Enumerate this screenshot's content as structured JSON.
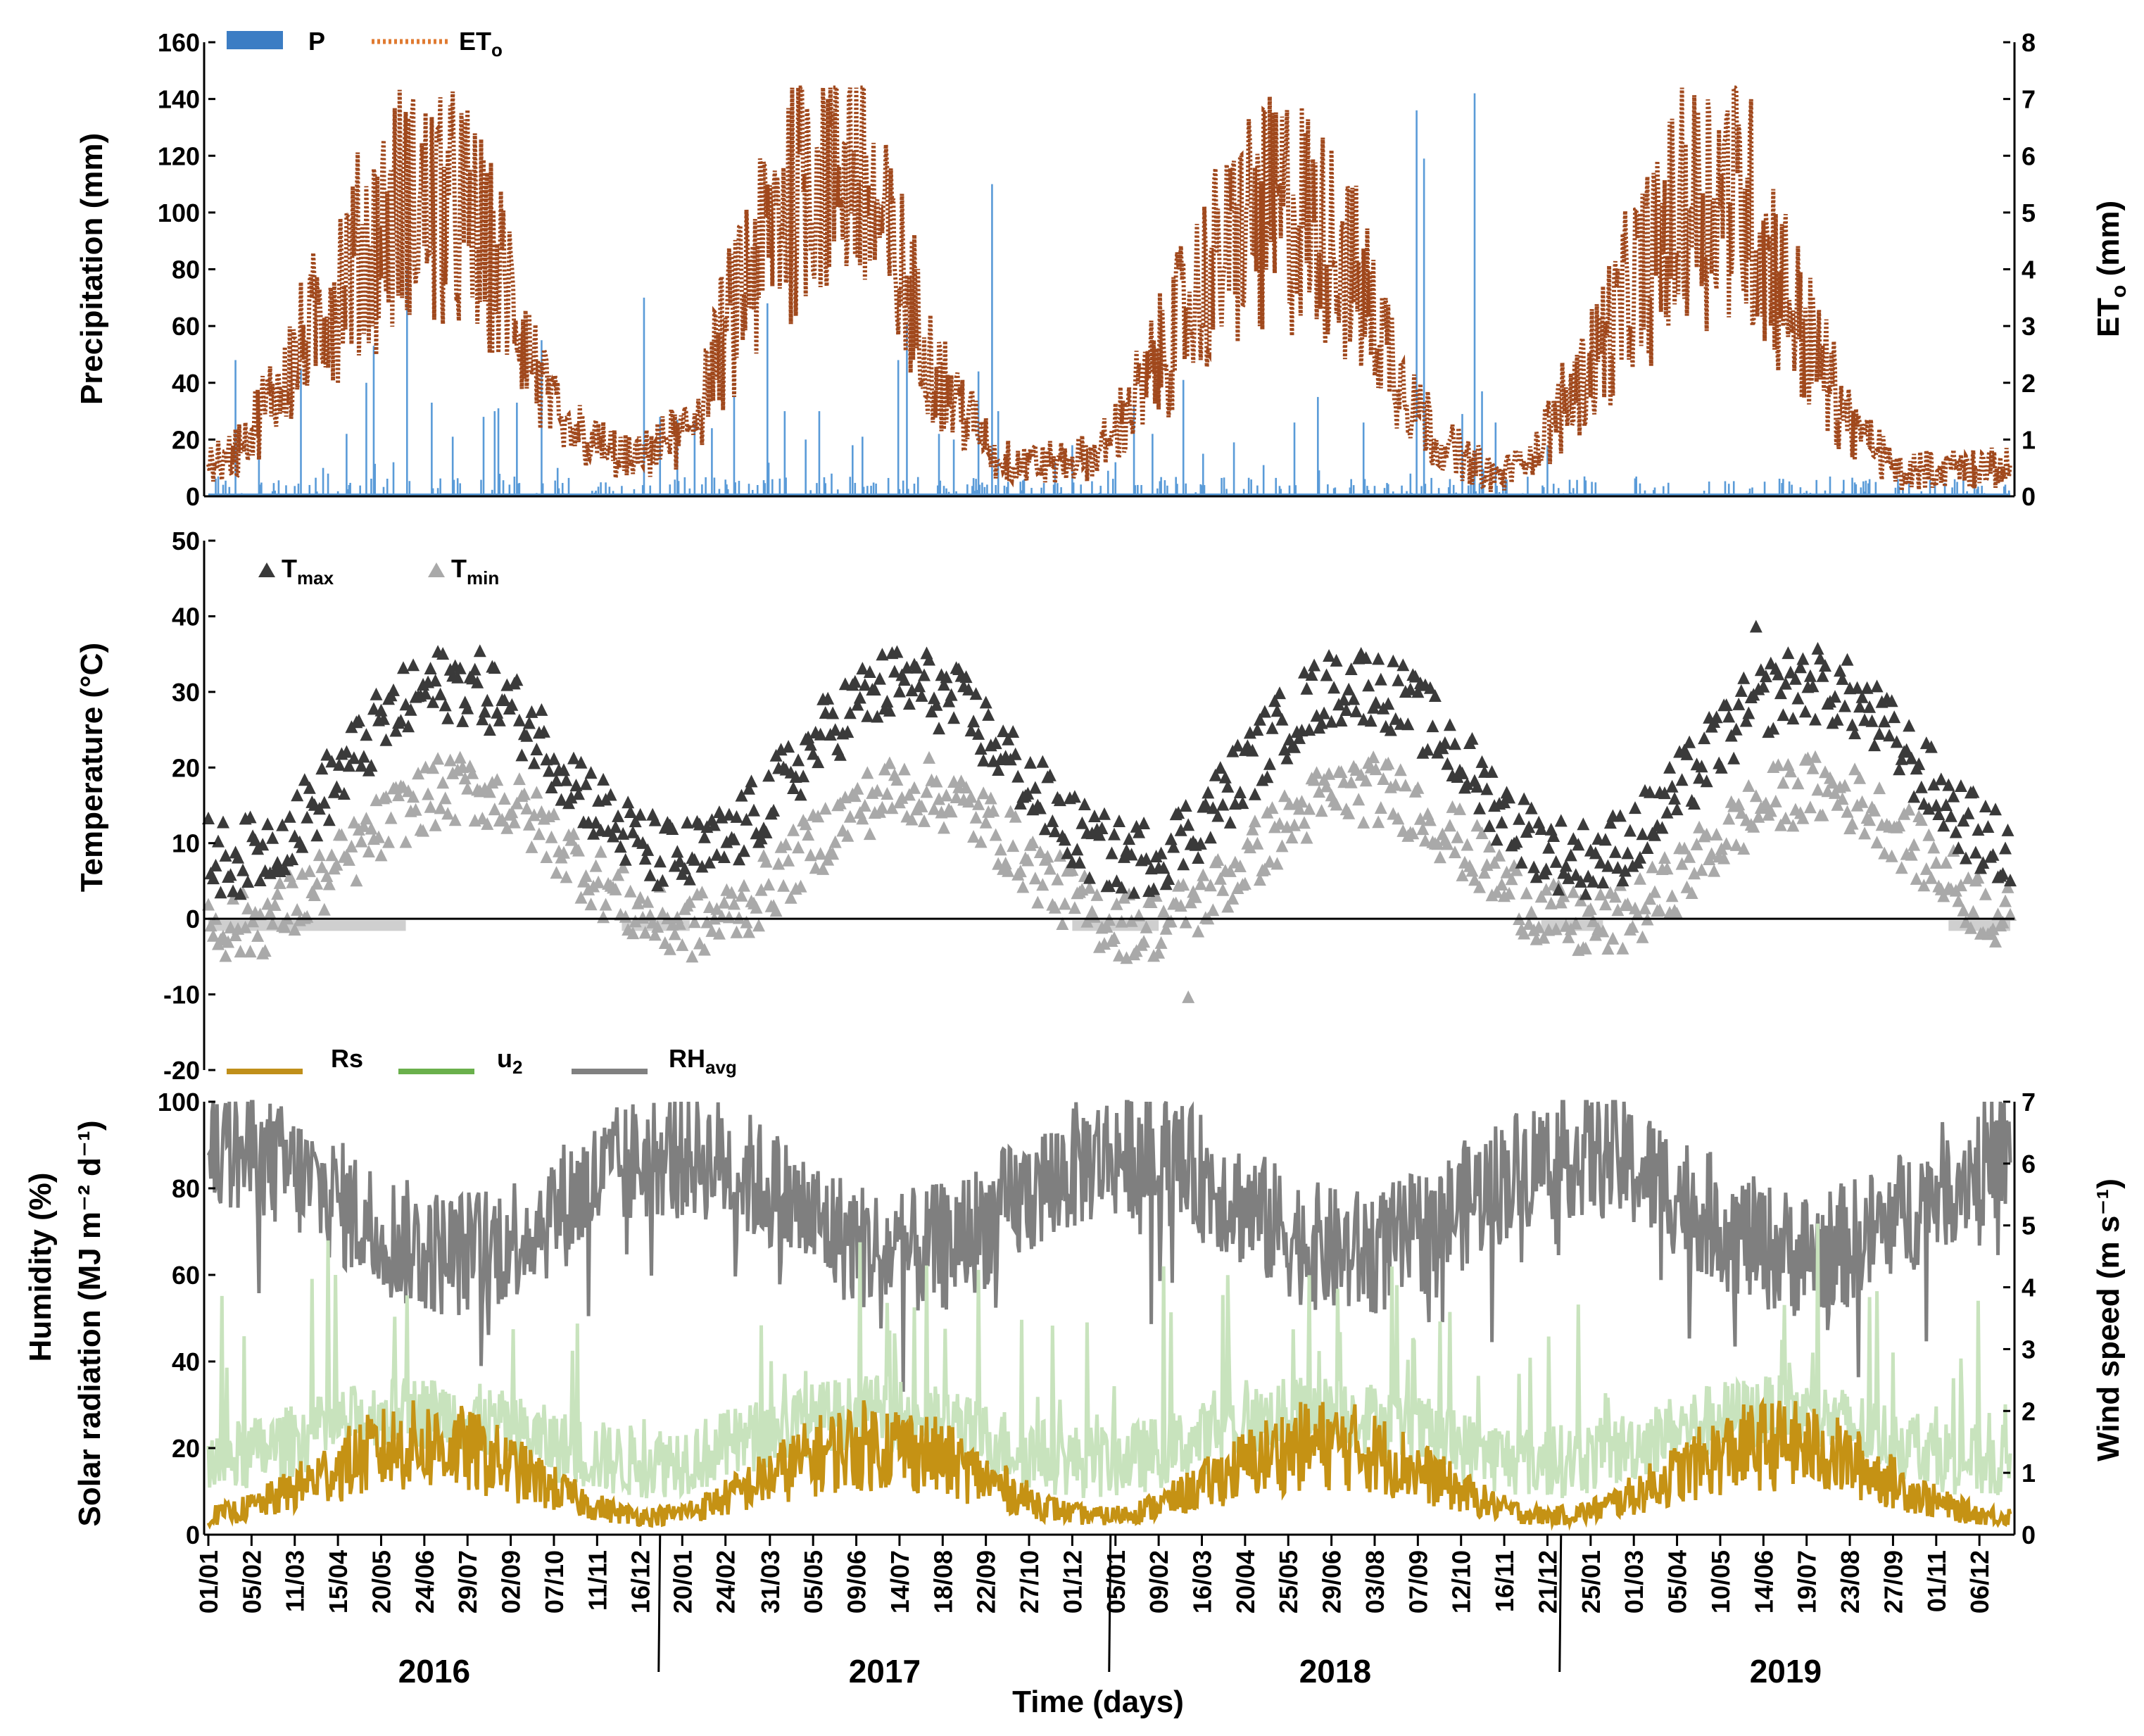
{
  "chart_data": [
    {
      "type": "bar",
      "panel": "top",
      "ylabel": "Precipitation (mm)",
      "y2label": "ETo (mm)",
      "y2label_main": "ET",
      "y2label_sub": "o",
      "y2label_unit": " (mm)",
      "ylim": [
        0,
        160
      ],
      "y_ticks": [
        0,
        20,
        40,
        60,
        80,
        100,
        120,
        140,
        160
      ],
      "y2lim": [
        0,
        8
      ],
      "y2_ticks": [
        0,
        1,
        2,
        3,
        4,
        5,
        6,
        7,
        8
      ],
      "legend": [
        {
          "key": "P",
          "label": "P",
          "sub": "",
          "color": "#3c7dc4",
          "style": "bar"
        },
        {
          "key": "ETo",
          "label": "ET",
          "sub": "o",
          "color": "#e07b32",
          "style": "dotted"
        }
      ],
      "series": [
        {
          "name": "P",
          "style": "bar",
          "color": "#5a9bd8",
          "daily": "generated",
          "peaks": [
            [
              8,
              7
            ],
            [
              22,
              48
            ],
            [
              41,
              33
            ],
            [
              75,
              45
            ],
            [
              93,
              10
            ],
            [
              97,
              8
            ],
            [
              112,
              22
            ],
            [
              128,
              40
            ],
            [
              134,
              53
            ],
            [
              150,
              12
            ],
            [
              161,
              81
            ],
            [
              181,
              33
            ],
            [
              198,
              21
            ],
            [
              223,
              28
            ],
            [
              232,
              30
            ],
            [
              235,
              31
            ],
            [
              250,
              33
            ],
            [
              270,
              55
            ],
            [
              283,
              10
            ],
            [
              353,
              70
            ],
            [
              366,
              28
            ],
            [
              380,
              27
            ],
            [
              394,
              26
            ],
            [
              408,
              24
            ],
            [
              426,
              35
            ],
            [
              453,
              68
            ],
            [
              467,
              30
            ],
            [
              484,
              20
            ],
            [
              495,
              30
            ],
            [
              505,
              8
            ],
            [
              522,
              18
            ],
            [
              530,
              21
            ],
            [
              559,
              48
            ],
            [
              566,
              61
            ],
            [
              592,
              22
            ],
            [
              604,
              20
            ],
            [
              624,
              44
            ],
            [
              635,
              110
            ],
            [
              640,
              30
            ],
            [
              661,
              6
            ],
            [
              686,
              12
            ],
            [
              700,
              18
            ],
            [
              729,
              9
            ],
            [
              735,
              12
            ],
            [
              750,
              32
            ],
            [
              765,
              22
            ],
            [
              790,
              41
            ],
            [
              806,
              15
            ],
            [
              831,
              19
            ],
            [
              855,
              11
            ],
            [
              880,
              26
            ],
            [
              899,
              35
            ],
            [
              936,
              26
            ],
            [
              974,
              8
            ],
            [
              979,
              136
            ],
            [
              985,
              119
            ],
            [
              1009,
              4
            ],
            [
              1016,
              29
            ],
            [
              1026,
              142
            ],
            [
              1032,
              37
            ],
            [
              1043,
              26
            ],
            [
              1085,
              18
            ]
          ]
        },
        {
          "name": "ETo",
          "style": "dotted",
          "color": "#a0481c",
          "axis": "right",
          "daily": "generated",
          "peaks": [
            [
              0,
              0.6
            ],
            [
              20,
              0.7
            ],
            [
              60,
              2.0
            ],
            [
              110,
              3.9
            ],
            [
              160,
              5.2
            ],
            [
              205,
              5.0
            ],
            [
              245,
              3.5
            ],
            [
              285,
              1.2
            ],
            [
              345,
              0.6
            ],
            [
              390,
              1.2
            ],
            [
              430,
              3.5
            ],
            [
              480,
              5.8
            ],
            [
              520,
              6.0
            ],
            [
              555,
              4.2
            ],
            [
              590,
              2.2
            ],
            [
              640,
              0.6
            ],
            [
              690,
              0.6
            ],
            [
              720,
              0.7
            ],
            [
              760,
              2.0
            ],
            [
              800,
              3.5
            ],
            [
              840,
              4.8
            ],
            [
              880,
              5.0
            ],
            [
              915,
              4.5
            ],
            [
              955,
              2.6
            ],
            [
              995,
              1.0
            ],
            [
              1045,
              0.3
            ],
            [
              1075,
              0.8
            ],
            [
              1110,
              2.0
            ],
            [
              1150,
              3.5
            ],
            [
              1200,
              5.2
            ],
            [
              1235,
              5.5
            ],
            [
              1260,
              4.5
            ],
            [
              1290,
              3.0
            ],
            [
              1330,
              1.3
            ],
            [
              1370,
              0.4
            ],
            [
              1400,
              0.5
            ]
          ]
        }
      ]
    },
    {
      "type": "scatter",
      "panel": "middle",
      "ylabel": "Temperature (°C)",
      "ylim": [
        -20,
        50
      ],
      "y_ticks": [
        -20,
        -10,
        0,
        10,
        20,
        30,
        40,
        50
      ],
      "legend": [
        {
          "key": "Tmax",
          "label": "T",
          "sub": "max",
          "color": "#3a3a3a"
        },
        {
          "key": "Tmin",
          "label": "T",
          "sub": "min",
          "color": "#a9a9a9"
        }
      ],
      "series": [
        {
          "name": "Tmax",
          "color": "#3a3a3a",
          "marker": "triangle",
          "annual": {
            "winter": 8,
            "summer": 31,
            "peak_day": 200,
            "max_observed": 38.5
          }
        },
        {
          "name": "Tmin",
          "color": "#a9a9a9",
          "marker": "triangle",
          "annual": {
            "winter": -1,
            "summer": 17,
            "peak_day": 205,
            "min_observed": -10.5
          }
        }
      ]
    },
    {
      "type": "line",
      "panel": "bottom",
      "ylabel": "Humidity (%)",
      "ylabel2": "Solar radiation (MJ m⁻² d⁻¹)",
      "y2label": "Wind speed (m s⁻¹)",
      "ylim": [
        0,
        100
      ],
      "y_ticks": [
        0,
        20,
        40,
        60,
        80,
        100
      ],
      "y2lim": [
        0,
        7
      ],
      "y2_ticks": [
        0,
        1,
        2,
        3,
        4,
        5,
        6,
        7
      ],
      "legend": [
        {
          "key": "Rs",
          "label": "Rs",
          "sub": "",
          "color": "#c08f1a"
        },
        {
          "key": "u2",
          "label": "u",
          "sub": "2",
          "color": "#6ab04c"
        },
        {
          "key": "RHavg",
          "label": "RH",
          "sub": "avg",
          "color": "#808080"
        }
      ],
      "series": [
        {
          "name": "RHavg",
          "color": "#7f7f7f",
          "annual": {
            "winter": 88,
            "summer": 65
          }
        },
        {
          "name": "u2",
          "color": "#c8e3bd",
          "axis": "right",
          "annual": {
            "winter": 1.0,
            "summer": 1.8
          }
        },
        {
          "name": "Rs",
          "color": "#c59214",
          "annual": {
            "winter": 5,
            "summer": 24
          }
        }
      ]
    }
  ],
  "x_axis": {
    "xlabel": "Time (days)",
    "days": 1461,
    "tick_days": [
      0,
      35,
      70,
      105,
      140,
      175,
      210,
      245,
      280,
      315,
      350,
      384,
      419,
      455,
      490,
      525,
      560,
      595,
      630,
      665,
      700,
      735,
      770,
      805,
      840,
      875,
      910,
      945,
      980,
      1015,
      1050,
      1085,
      1120,
      1155,
      1190,
      1225,
      1260,
      1295,
      1330,
      1365,
      1400,
      1435
    ],
    "tick_labels": [
      "01/01",
      "05/02",
      "11/03",
      "15/04",
      "20/05",
      "24/06",
      "29/07",
      "02/09",
      "07/10",
      "11/11",
      "16/12",
      "20/01",
      "24/02",
      "31/03",
      "05/05",
      "09/06",
      "14/07",
      "18/08",
      "22/09",
      "27/10",
      "01/12",
      "05/01",
      "09/02",
      "16/03",
      "20/04",
      "25/05",
      "29/06",
      "03/08",
      "07/09",
      "12/10",
      "16/11",
      "21/12",
      "25/01",
      "01/03",
      "05/04",
      "10/05",
      "14/06",
      "19/07",
      "23/08",
      "27/09",
      "01/11",
      "06/12"
    ],
    "year_labels": [
      "2016",
      "2017",
      "2018",
      "2019"
    ],
    "year_label_days": [
      183,
      548,
      913,
      1278
    ],
    "year_boundaries": [
      366,
      731,
      1096
    ]
  }
}
